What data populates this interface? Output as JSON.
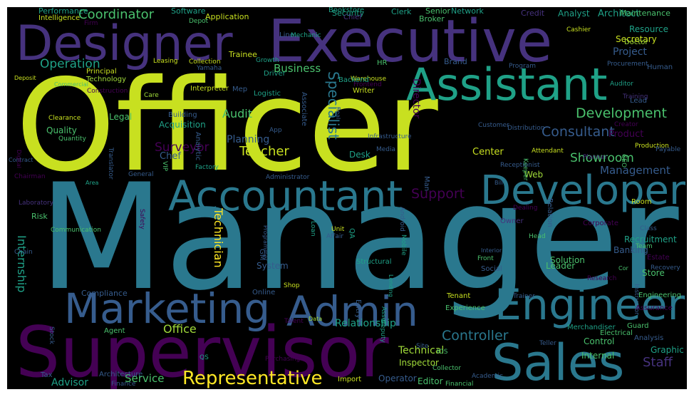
{
  "palette": {
    "yellow": "#c8e020",
    "lime": "#a0da39",
    "green": "#4ac16d",
    "teal": "#1fa187",
    "cyan": "#2a788e",
    "slate": "#365c8d",
    "blue": "#46327e",
    "purple": "#440154",
    "gold": "#fde725"
  },
  "words": [
    {
      "text": "Officer",
      "c": "yellow"
    },
    {
      "text": "Manager",
      "c": "cyan"
    },
    {
      "text": "Supervisor",
      "c": "purple"
    },
    {
      "text": "Executive",
      "c": "blue"
    },
    {
      "text": "Designer",
      "c": "blue"
    },
    {
      "text": "Sales",
      "c": "cyan"
    },
    {
      "text": "Assistant",
      "c": "teal"
    },
    {
      "text": "Accountant",
      "c": "cyan"
    },
    {
      "text": "Developer",
      "c": "cyan"
    },
    {
      "text": "Engineer",
      "c": "cyan"
    },
    {
      "text": "Marketing",
      "c": "slate"
    },
    {
      "text": "Admin",
      "c": "slate"
    },
    {
      "text": "Representative",
      "c": "gold"
    },
    {
      "text": "Coordinator",
      "c": "green"
    },
    {
      "text": "Development",
      "c": "green"
    },
    {
      "text": "Consultant",
      "c": "slate"
    },
    {
      "text": "Support",
      "c": "purple"
    },
    {
      "text": "Controller",
      "c": "cyan"
    },
    {
      "text": "Operation",
      "c": "teal"
    },
    {
      "text": "Management",
      "c": "slate"
    },
    {
      "text": "Staff",
      "c": "blue"
    },
    {
      "text": "Specialist",
      "c": "cyan"
    },
    {
      "text": "Internship",
      "c": "teal"
    },
    {
      "text": "Technician",
      "c": "gold"
    },
    {
      "text": "Teacher",
      "c": "yellow"
    },
    {
      "text": "Showroom",
      "c": "green"
    },
    {
      "text": "Surveyor",
      "c": "purple"
    },
    {
      "text": "Audit",
      "c": "green"
    },
    {
      "text": "Office",
      "c": "lime"
    },
    {
      "text": "Service",
      "c": "green"
    },
    {
      "text": "Advisor",
      "c": "teal"
    },
    {
      "text": "Business",
      "c": "green"
    },
    {
      "text": "Project",
      "c": "slate"
    },
    {
      "text": "Planning",
      "c": "slate"
    },
    {
      "text": "Relationship",
      "c": "teal"
    },
    {
      "text": "Technical",
      "c": "lime"
    },
    {
      "text": "Director",
      "c": "purple"
    },
    {
      "text": "Chef",
      "c": "slate"
    },
    {
      "text": "Product",
      "c": "purple"
    },
    {
      "text": "Acquisition",
      "c": "teal"
    },
    {
      "text": "Legal",
      "c": "green"
    },
    {
      "text": "Center",
      "c": "yellow"
    },
    {
      "text": "Architect",
      "c": "teal"
    },
    {
      "text": "Analyst",
      "c": "teal"
    },
    {
      "text": "Quality",
      "c": "green"
    },
    {
      "text": "Banking",
      "c": "slate"
    },
    {
      "text": "Recruitment",
      "c": "teal"
    },
    {
      "text": "Leader",
      "c": "green"
    },
    {
      "text": "Solution",
      "c": "green"
    },
    {
      "text": "Store",
      "c": "green"
    },
    {
      "text": "System",
      "c": "slate"
    },
    {
      "text": "Graphic",
      "c": "teal"
    },
    {
      "text": "Editor",
      "c": "green"
    },
    {
      "text": "Operator",
      "c": "slate"
    },
    {
      "text": "Internal",
      "c": "green"
    },
    {
      "text": "Control",
      "c": "green"
    },
    {
      "text": "Inspector",
      "c": "lime"
    },
    {
      "text": "Resource",
      "c": "teal"
    },
    {
      "text": "Secretary",
      "c": "yellow"
    },
    {
      "text": "Web",
      "c": "lime"
    },
    {
      "text": "Desk",
      "c": "teal"
    },
    {
      "text": "Risk",
      "c": "green"
    },
    {
      "text": "Compliance",
      "c": "slate"
    },
    {
      "text": "Credit",
      "c": "blue"
    },
    {
      "text": "Senior",
      "c": "green"
    },
    {
      "text": "Software",
      "c": "teal"
    },
    {
      "text": "Application",
      "c": "yellow"
    },
    {
      "text": "Security",
      "c": "teal"
    },
    {
      "text": "Clerk",
      "c": "teal"
    },
    {
      "text": "Broker",
      "c": "green"
    },
    {
      "text": "Network",
      "c": "teal"
    },
    {
      "text": "Maintenance",
      "c": "green"
    },
    {
      "text": "Performance",
      "c": "teal"
    },
    {
      "text": "Intelligence",
      "c": "yellow"
    },
    {
      "text": "Chief",
      "c": "blue"
    },
    {
      "text": "Bookstore",
      "c": "teal"
    },
    {
      "text": "Firm",
      "c": "purple"
    },
    {
      "text": "Depot",
      "c": "green"
    },
    {
      "text": "Line",
      "c": "slate"
    },
    {
      "text": "Mechanic",
      "c": "teal"
    },
    {
      "text": "Cashier",
      "c": "yellow"
    },
    {
      "text": "Doctor",
      "c": "lime"
    },
    {
      "text": "Trainee",
      "c": "yellow"
    },
    {
      "text": "Principal",
      "c": "yellow"
    },
    {
      "text": "Technology",
      "c": "lime"
    },
    {
      "text": "Collection",
      "c": "yellow"
    },
    {
      "text": "Growth",
      "c": "teal"
    },
    {
      "text": "Yamaha",
      "c": "slate"
    },
    {
      "text": "Leasing",
      "c": "yellow"
    },
    {
      "text": "Driver",
      "c": "teal"
    },
    {
      "text": "HR",
      "c": "green"
    },
    {
      "text": "Brand",
      "c": "slate"
    },
    {
      "text": "Warehouse",
      "c": "yellow"
    },
    {
      "text": "Frontend",
      "c": "purple"
    },
    {
      "text": "Program",
      "c": "slate"
    },
    {
      "text": "Procurement",
      "c": "slate"
    },
    {
      "text": "Auditor",
      "c": "teal"
    },
    {
      "text": "Human",
      "c": "slate"
    },
    {
      "text": "Deposit",
      "c": "yellow"
    },
    {
      "text": "Construction",
      "c": "purple"
    },
    {
      "text": "Interpreter",
      "c": "yellow"
    },
    {
      "text": "Care",
      "c": "lime"
    },
    {
      "text": "Mep",
      "c": "slate"
    },
    {
      "text": "Logistic",
      "c": "teal"
    },
    {
      "text": "Associate",
      "c": "slate"
    },
    {
      "text": "Backend",
      "c": "teal"
    },
    {
      "text": "Writer",
      "c": "yellow"
    },
    {
      "text": "Training",
      "c": "blue"
    },
    {
      "text": "Lead",
      "c": "slate"
    },
    {
      "text": "Commercial",
      "c": "green"
    },
    {
      "text": "Clearance",
      "c": "yellow"
    },
    {
      "text": "Building",
      "c": "slate"
    },
    {
      "text": "Quantity",
      "c": "green"
    },
    {
      "text": "App",
      "c": "slate"
    },
    {
      "text": "Analytic",
      "c": "slate"
    },
    {
      "text": "Real",
      "c": "slate"
    },
    {
      "text": "Customer",
      "c": "slate"
    },
    {
      "text": "Distribution",
      "c": "slate"
    },
    {
      "text": "Creator",
      "c": "purple"
    },
    {
      "text": "Production",
      "c": "yellow"
    },
    {
      "text": "Infrastructure",
      "c": "slate"
    },
    {
      "text": "Media",
      "c": "slate"
    },
    {
      "text": "Attendant",
      "c": "yellow"
    },
    {
      "text": "Planner",
      "c": "blue"
    },
    {
      "text": "CEO",
      "c": "green"
    },
    {
      "text": "Payable",
      "c": "slate"
    },
    {
      "text": "Contract",
      "c": "slate"
    },
    {
      "text": "Digital",
      "c": "purple"
    },
    {
      "text": "Translator",
      "c": "slate"
    },
    {
      "text": "VIP",
      "c": "green"
    },
    {
      "text": "Factory",
      "c": "teal"
    },
    {
      "text": "General",
      "c": "slate"
    },
    {
      "text": "Keeper",
      "c": "green"
    },
    {
      "text": "Receptionist",
      "c": "slate"
    },
    {
      "text": "Administrator",
      "c": "slate"
    },
    {
      "text": "Man",
      "c": "slate"
    },
    {
      "text": "Bill",
      "c": "slate"
    },
    {
      "text": "Chairman",
      "c": "purple"
    },
    {
      "text": "Area",
      "c": "teal"
    },
    {
      "text": "Laboratory",
      "c": "blue"
    },
    {
      "text": "Relation",
      "c": "slate"
    },
    {
      "text": "Room",
      "c": "yellow"
    },
    {
      "text": "Dealing",
      "c": "purple"
    },
    {
      "text": "Android",
      "c": "slate"
    },
    {
      "text": "Communication",
      "c": "green"
    },
    {
      "text": "Safety",
      "c": "purple"
    },
    {
      "text": "Programmer",
      "c": "slate"
    },
    {
      "text": "Loan",
      "c": "teal"
    },
    {
      "text": "Unit",
      "c": "yellow"
    },
    {
      "text": "QA",
      "c": "teal"
    },
    {
      "text": "Owner",
      "c": "blue"
    },
    {
      "text": "Affair",
      "c": "slate"
    },
    {
      "text": "Mobile",
      "c": "teal"
    },
    {
      "text": "Head",
      "c": "green"
    },
    {
      "text": "Corporate",
      "c": "purple"
    },
    {
      "text": "Class",
      "c": "slate"
    },
    {
      "text": "Team",
      "c": "green"
    },
    {
      "text": "Estate",
      "c": "purple"
    },
    {
      "text": "Recovery",
      "c": "slate"
    },
    {
      "text": "GM",
      "c": "slate"
    },
    {
      "text": "Interior",
      "c": "slate"
    },
    {
      "text": "Front",
      "c": "green"
    },
    {
      "text": "Structural",
      "c": "teal"
    },
    {
      "text": "Social",
      "c": "slate"
    },
    {
      "text": "Research",
      "c": "purple"
    },
    {
      "text": "Cor",
      "c": "green"
    },
    {
      "text": "Instructor",
      "c": "slate"
    },
    {
      "text": "Engineering",
      "c": "green"
    },
    {
      "text": "Chain",
      "c": "slate"
    },
    {
      "text": "Online",
      "c": "slate"
    },
    {
      "text": "Shop",
      "c": "yellow"
    },
    {
      "text": "Lending",
      "c": "teal"
    },
    {
      "text": "Tenant",
      "c": "yellow"
    },
    {
      "text": "Trainer",
      "c": "slate"
    },
    {
      "text": "Entry",
      "c": "slate"
    },
    {
      "text": "Asset",
      "c": "teal"
    },
    {
      "text": "Experience",
      "c": "green"
    },
    {
      "text": "Assurance",
      "c": "purple"
    },
    {
      "text": "Agent",
      "c": "green"
    },
    {
      "text": "Talent",
      "c": "purple"
    },
    {
      "text": "Data",
      "c": "lime"
    },
    {
      "text": "Stock",
      "c": "slate"
    },
    {
      "text": "Deputy",
      "c": "teal"
    },
    {
      "text": "Merchandiser",
      "c": "teal"
    },
    {
      "text": "Guard",
      "c": "green"
    },
    {
      "text": "Electrical",
      "c": "green"
    },
    {
      "text": "Analysis",
      "c": "slate"
    },
    {
      "text": "Teller",
      "c": "slate"
    },
    {
      "text": "Site",
      "c": "slate"
    },
    {
      "text": "IOS",
      "c": "green"
    },
    {
      "text": "QS",
      "c": "teal"
    },
    {
      "text": "Purchasing",
      "c": "purple"
    },
    {
      "text": "Collector",
      "c": "green"
    },
    {
      "text": "Tax",
      "c": "slate"
    },
    {
      "text": "Architecture",
      "c": "slate"
    },
    {
      "text": "Finance",
      "c": "slate"
    },
    {
      "text": "Import",
      "c": "yellow"
    },
    {
      "text": "Academic",
      "c": "slate"
    },
    {
      "text": "Financial",
      "c": "green"
    }
  ]
}
